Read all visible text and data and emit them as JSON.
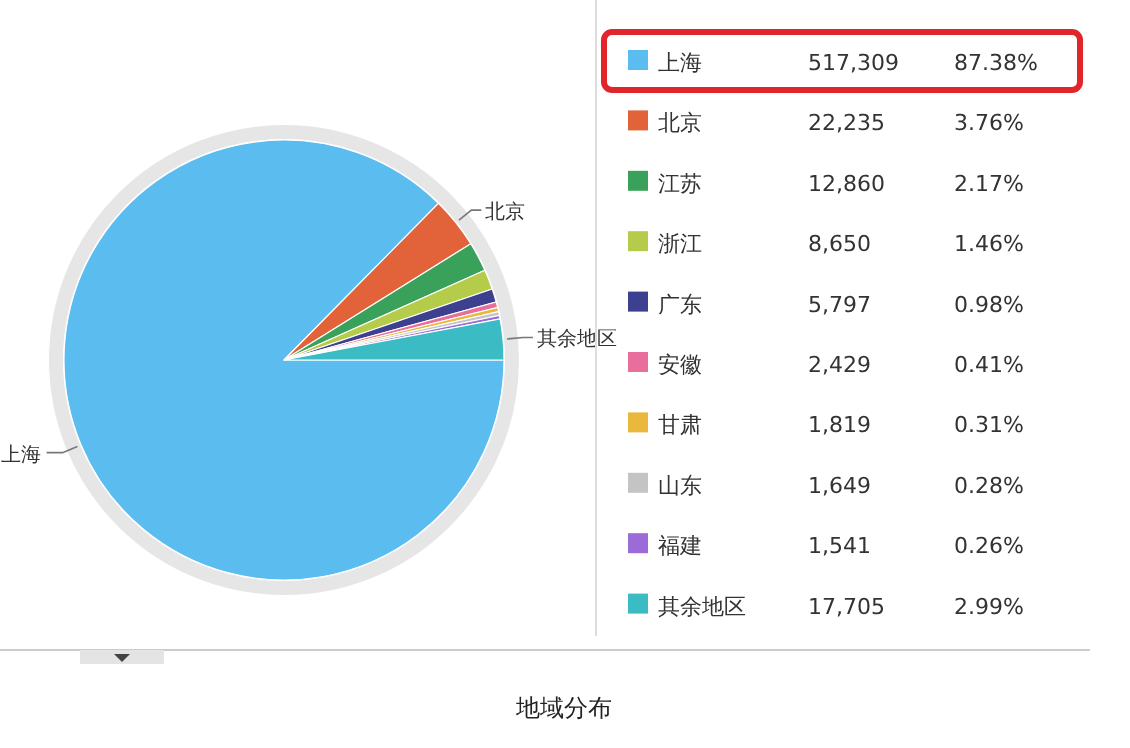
{
  "chart_data": {
    "type": "pie",
    "title": "地域分布",
    "categories": [
      "上海",
      "北京",
      "江苏",
      "浙江",
      "广东",
      "安徽",
      "甘肃",
      "山东",
      "福建",
      "其余地区"
    ],
    "values": [
      517309,
      22235,
      12860,
      8650,
      5797,
      2429,
      1819,
      1649,
      1541,
      17705
    ],
    "colors": [
      "#5bbcf0",
      "#e2623a",
      "#3aa15a",
      "#b5cc4a",
      "#3d3f8f",
      "#e86f9c",
      "#e9b83c",
      "#c4c4c4",
      "#9b6cd8",
      "#3bbcc4"
    ],
    "value_labels": [
      "517,309",
      "22,235",
      "12,860",
      "8,650",
      "5,797",
      "2,429",
      "1,819",
      "1,649",
      "1,541",
      "17,705"
    ],
    "legend": "right",
    "annotations": [
      {
        "text": "上海",
        "x": "上海"
      },
      {
        "text": "北京",
        "x": "北京"
      },
      {
        "text": "其余地区",
        "x": "其余地区"
      },
      "87.38%",
      "3.76%",
      "2.17%",
      "1.46%",
      "0.98%",
      "0.41%",
      "0.31%",
      "0.28%",
      "0.26%",
      "2.99%"
    ]
  }
}
